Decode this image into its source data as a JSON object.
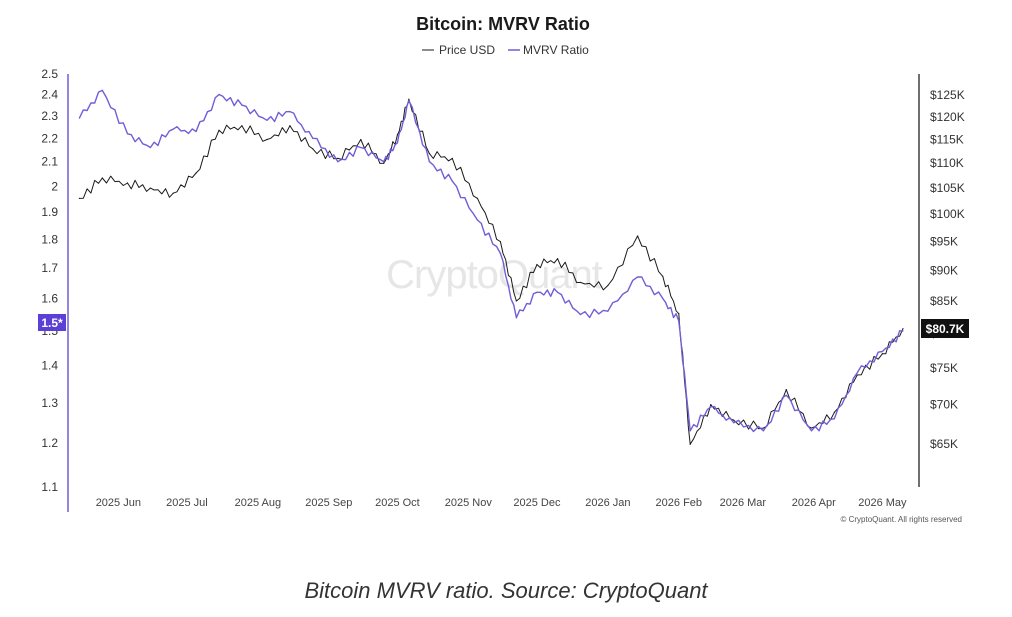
{
  "chart_data": {
    "type": "line",
    "title": "Bitcoin: MVRV Ratio",
    "legend": [
      "Price USD",
      "MVRV Ratio"
    ],
    "legend_position": "top-center",
    "grid": false,
    "x_tick_labels": [
      "2025 Jun",
      "2025 Jul",
      "2025 Aug",
      "2025 Sep",
      "2025 Oct",
      "2025 Nov",
      "2025 Dec",
      "2026 Jan",
      "2026 Feb",
      "2026 Mar",
      "2026 Apr",
      "2026 May"
    ],
    "x_ticks": [
      "2025-06-01",
      "2025-07-01",
      "2025-08-01",
      "2025-09-01",
      "2025-10-01",
      "2025-11-01",
      "2025-12-01",
      "2026-01-01",
      "2026-02-01",
      "2026-03-01",
      "2026-04-01",
      "2026-05-01"
    ],
    "left_axis": {
      "ticks": [
        1.1,
        1.2,
        1.3,
        1.4,
        1.5,
        1.6,
        1.7,
        1.8,
        1.9,
        2,
        2.1,
        2.2,
        2.3,
        2.4,
        2.5
      ],
      "tick_labels": [
        "1.1",
        "1.2",
        "1.3",
        "1.4",
        "1.5",
        "1.6",
        "1.7",
        "1.8",
        "1.9",
        "2",
        "2.1",
        "2.2",
        "2.3",
        "2.4",
        "2.5"
      ],
      "range": [
        1.1,
        2.5
      ],
      "scale": "log",
      "current_marker": "1.5*"
    },
    "right_axis": {
      "ticks": [
        65000,
        70000,
        75000,
        80000,
        85000,
        90000,
        95000,
        100000,
        105000,
        110000,
        115000,
        120000,
        125000
      ],
      "tick_labels": [
        "$65K",
        "$70K",
        "$75K",
        "$80K",
        "$85K",
        "$90K",
        "$95K",
        "$100K",
        "$105K",
        "$110K",
        "$115K",
        "$120K",
        "$125K"
      ],
      "range": [
        60000,
        130000
      ],
      "scale": "log",
      "current_marker": "$80.7K"
    },
    "series": [
      {
        "name": "Price USD",
        "color": "#1a1a1a",
        "x": [
          "2025-05-15",
          "2025-05-25",
          "2025-06-05",
          "2025-06-15",
          "2025-06-25",
          "2025-07-05",
          "2025-07-15",
          "2025-07-25",
          "2025-08-05",
          "2025-08-15",
          "2025-08-25",
          "2025-09-05",
          "2025-09-15",
          "2025-09-25",
          "2025-10-01",
          "2025-10-06",
          "2025-10-15",
          "2025-10-25",
          "2025-11-05",
          "2025-11-15",
          "2025-11-22",
          "2025-12-01",
          "2025-12-10",
          "2025-12-20",
          "2026-01-01",
          "2026-01-14",
          "2026-01-25",
          "2026-02-01",
          "2026-02-06",
          "2026-02-15",
          "2026-02-25",
          "2026-03-10",
          "2026-03-20",
          "2026-03-31",
          "2026-04-10",
          "2026-04-20",
          "2026-05-01",
          "2026-05-10"
        ],
        "y": [
          103000,
          107000,
          106000,
          105000,
          104000,
          108000,
          117000,
          118000,
          115000,
          118000,
          113000,
          111000,
          115000,
          110000,
          116000,
          124000,
          112000,
          111000,
          103000,
          95000,
          85000,
          91000,
          92000,
          88000,
          87500,
          96000,
          89000,
          83000,
          65000,
          70000,
          68000,
          67000,
          72000,
          67000,
          69000,
          74000,
          77000,
          80700
        ]
      },
      {
        "name": "MVRV Ratio",
        "color": "#6f5ed8",
        "x": [
          "2025-05-15",
          "2025-05-25",
          "2025-06-05",
          "2025-06-15",
          "2025-06-25",
          "2025-07-05",
          "2025-07-15",
          "2025-07-25",
          "2025-08-05",
          "2025-08-15",
          "2025-08-25",
          "2025-09-05",
          "2025-09-15",
          "2025-09-25",
          "2025-10-01",
          "2025-10-06",
          "2025-10-15",
          "2025-10-25",
          "2025-11-05",
          "2025-11-15",
          "2025-11-22",
          "2025-12-01",
          "2025-12-10",
          "2025-12-20",
          "2026-01-01",
          "2026-01-14",
          "2026-01-25",
          "2026-02-01",
          "2026-02-06",
          "2026-02-15",
          "2026-02-25",
          "2026-03-10",
          "2026-03-20",
          "2026-03-31",
          "2026-04-10",
          "2026-04-20",
          "2026-05-01",
          "2026-05-10"
        ],
        "y": [
          2.29,
          2.42,
          2.22,
          2.16,
          2.24,
          2.23,
          2.4,
          2.35,
          2.28,
          2.32,
          2.2,
          2.1,
          2.16,
          2.1,
          2.18,
          2.37,
          2.1,
          2.02,
          1.87,
          1.75,
          1.54,
          1.62,
          1.62,
          1.55,
          1.56,
          1.67,
          1.6,
          1.53,
          1.23,
          1.29,
          1.25,
          1.23,
          1.32,
          1.23,
          1.26,
          1.38,
          1.44,
          1.5
        ]
      }
    ]
  },
  "watermark": "CryptoQuant",
  "copyright": "© CryptoQuant. All rights reserved",
  "caption": "Bitcoin MVRV ratio. Source: CryptoQuant"
}
